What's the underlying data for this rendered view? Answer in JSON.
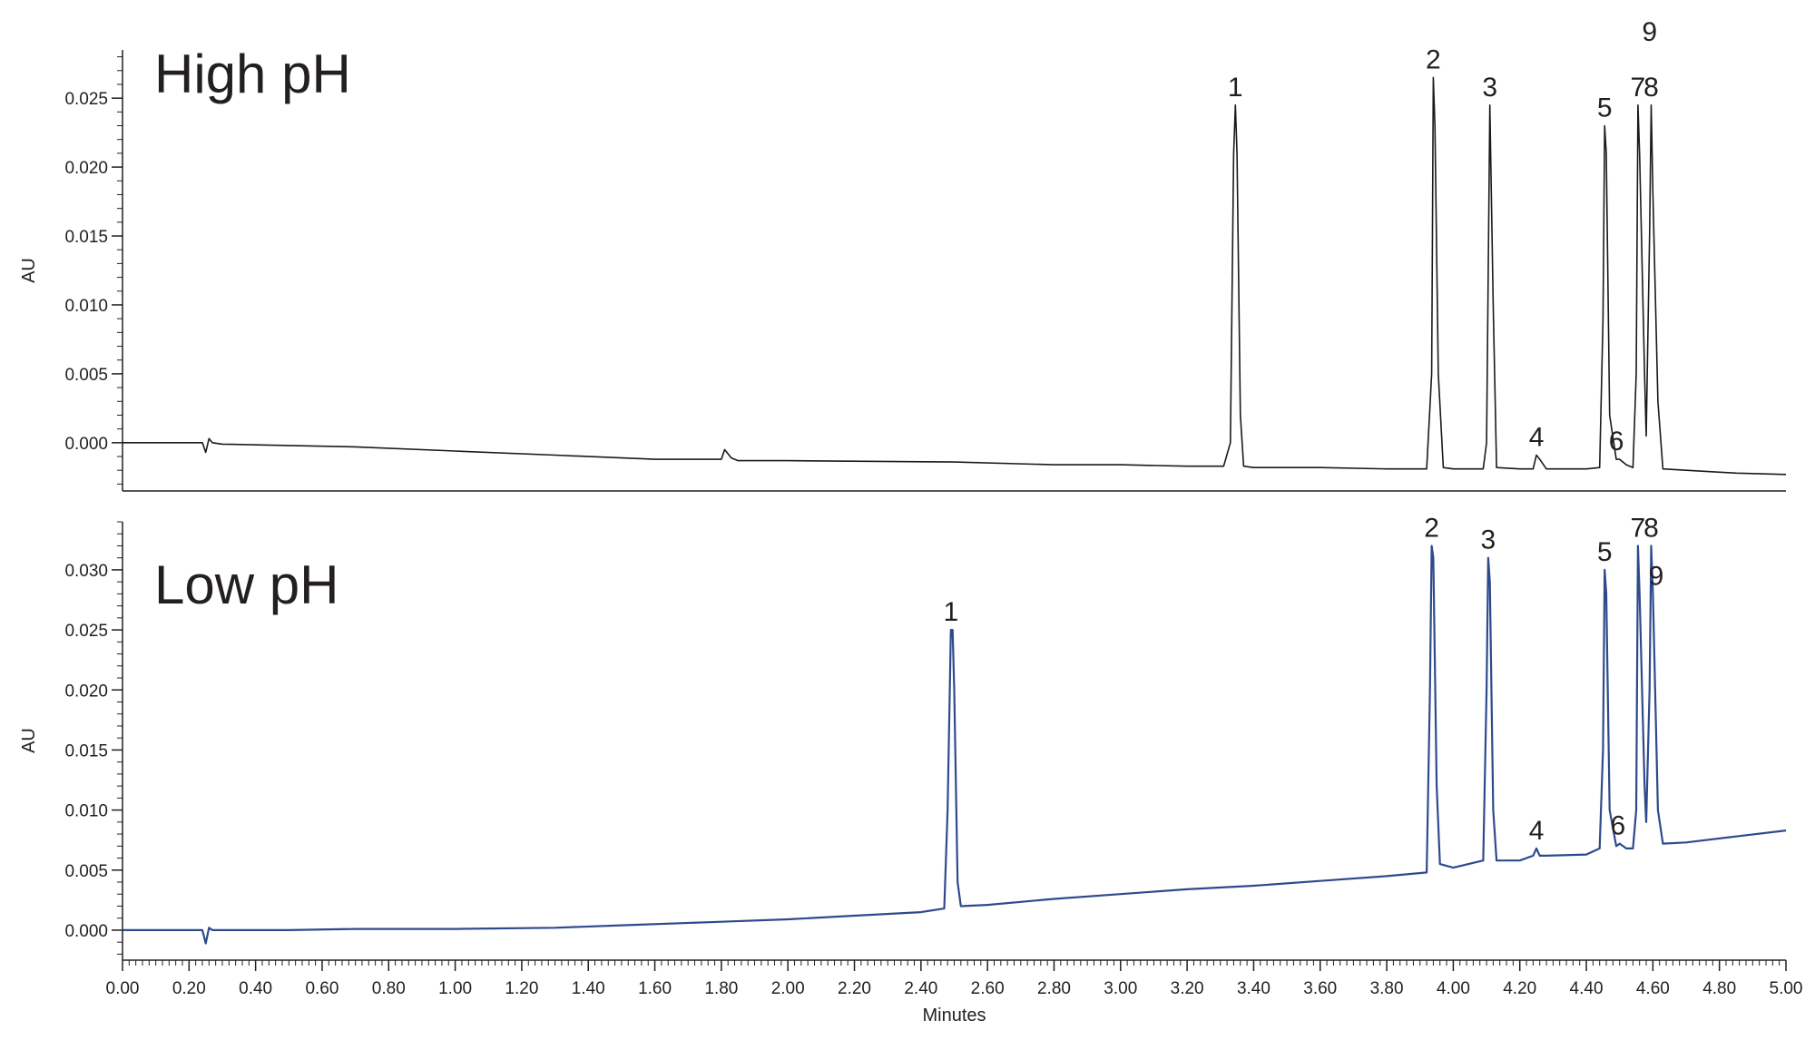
{
  "chart_data": [
    {
      "type": "line",
      "title": "High pH",
      "xlabel": "",
      "ylabel": "AU",
      "xlim": [
        0.0,
        5.0
      ],
      "ylim": [
        -0.0035,
        0.0285
      ],
      "y_ticks": [
        "0.000",
        "0.005",
        "0.010",
        "0.015",
        "0.020",
        "0.025"
      ],
      "y_tick_values": [
        0.0,
        0.005,
        0.01,
        0.015,
        0.02,
        0.025
      ],
      "grid": false,
      "line_color": "#1a1a1a",
      "series": [
        {
          "x": [
            0.0,
            0.24,
            0.25,
            0.26,
            0.27,
            0.3,
            0.5,
            0.7,
            1.0,
            1.3,
            1.6,
            1.8,
            1.81,
            1.83,
            1.85,
            2.0,
            2.5,
            2.8,
            3.0,
            3.2,
            3.31,
            3.33,
            3.34,
            3.345,
            3.35,
            3.36,
            3.37,
            3.4,
            3.6,
            3.8,
            3.92,
            3.935,
            3.94,
            3.945,
            3.955,
            3.97,
            4.0,
            4.09,
            4.1,
            4.11,
            4.12,
            4.13,
            4.2,
            4.24,
            4.25,
            4.26,
            4.28,
            4.4,
            4.44,
            4.45,
            4.455,
            4.46,
            4.47,
            4.49,
            4.5,
            4.52,
            4.54,
            4.55,
            4.555,
            4.56,
            4.575,
            4.58,
            4.59,
            4.595,
            4.6,
            4.615,
            4.63,
            4.7,
            4.85,
            5.0
          ],
          "y": [
            0.0,
            0.0,
            -0.0007,
            0.0003,
            0.0,
            -0.0001,
            -0.0002,
            -0.0003,
            -0.0006,
            -0.0009,
            -0.0012,
            -0.0012,
            -0.0005,
            -0.0011,
            -0.0013,
            -0.0013,
            -0.0014,
            -0.0016,
            -0.0016,
            -0.0017,
            -0.0017,
            0.0,
            0.021,
            0.0245,
            0.021,
            0.002,
            -0.0017,
            -0.0018,
            -0.0018,
            -0.0019,
            -0.0019,
            0.005,
            0.0265,
            0.023,
            0.005,
            -0.0018,
            -0.0019,
            -0.0019,
            0.0,
            0.0245,
            0.01,
            -0.0018,
            -0.0019,
            -0.0019,
            -0.0009,
            -0.0012,
            -0.0019,
            -0.0019,
            -0.0018,
            0.009,
            0.023,
            0.021,
            0.002,
            -0.0012,
            -0.0012,
            -0.0016,
            -0.0018,
            0.005,
            0.0245,
            0.021,
            0.005,
            0.0005,
            0.015,
            0.0245,
            0.018,
            0.003,
            -0.0019,
            -0.002,
            -0.0022,
            -0.0023
          ]
        }
      ],
      "peak_labels": [
        {
          "text": "1",
          "x": 3.345,
          "y": 0.0245
        },
        {
          "text": "2",
          "x": 3.94,
          "y": 0.0265
        },
        {
          "text": "3",
          "x": 4.11,
          "y": 0.0245
        },
        {
          "text": "4",
          "x": 4.25,
          "y": -0.0009
        },
        {
          "text": "5",
          "x": 4.455,
          "y": 0.023
        },
        {
          "text": "6",
          "x": 4.49,
          "y": -0.0012
        },
        {
          "text": "7",
          "x": 4.555,
          "y": 0.0245
        },
        {
          "text": "8",
          "x": 4.595,
          "y": 0.0245
        },
        {
          "text": "9",
          "x": 4.59,
          "y": 0.0285
        }
      ]
    },
    {
      "type": "line",
      "title": "Low pH",
      "xlabel": "Minutes",
      "ylabel": "AU",
      "xlim": [
        0.0,
        5.0
      ],
      "ylim": [
        -0.0025,
        0.034
      ],
      "x_ticks": [
        "0.00",
        "0.20",
        "0.40",
        "0.60",
        "0.80",
        "1.00",
        "1.20",
        "1.40",
        "1.60",
        "1.80",
        "2.00",
        "2.20",
        "2.40",
        "2.60",
        "2.80",
        "3.00",
        "3.20",
        "3.40",
        "3.60",
        "3.80",
        "4.00",
        "4.20",
        "4.40",
        "4.60",
        "4.80",
        "5.00"
      ],
      "x_tick_values": [
        0.0,
        0.2,
        0.4,
        0.6,
        0.8,
        1.0,
        1.2,
        1.4,
        1.6,
        1.8,
        2.0,
        2.2,
        2.4,
        2.6,
        2.8,
        3.0,
        3.2,
        3.4,
        3.6,
        3.8,
        4.0,
        4.2,
        4.4,
        4.6,
        4.8,
        5.0
      ],
      "y_ticks": [
        "0.000",
        "0.005",
        "0.010",
        "0.015",
        "0.020",
        "0.025",
        "0.030"
      ],
      "y_tick_values": [
        0.0,
        0.005,
        0.01,
        0.015,
        0.02,
        0.025,
        0.03
      ],
      "grid": false,
      "line_color": "#2e4a8c",
      "series": [
        {
          "x": [
            0.0,
            0.24,
            0.25,
            0.26,
            0.27,
            0.3,
            0.5,
            0.7,
            1.0,
            1.3,
            1.5,
            1.8,
            2.0,
            2.2,
            2.4,
            2.47,
            2.48,
            2.49,
            2.495,
            2.5,
            2.51,
            2.52,
            2.6,
            2.8,
            3.0,
            3.2,
            3.4,
            3.6,
            3.8,
            3.92,
            3.93,
            3.935,
            3.94,
            3.95,
            3.96,
            4.0,
            4.09,
            4.1,
            4.105,
            4.11,
            4.12,
            4.13,
            4.2,
            4.24,
            4.25,
            4.26,
            4.28,
            4.4,
            4.44,
            4.45,
            4.455,
            4.46,
            4.47,
            4.49,
            4.5,
            4.52,
            4.54,
            4.55,
            4.555,
            4.56,
            4.575,
            4.58,
            4.59,
            4.595,
            4.6,
            4.615,
            4.63,
            4.7,
            4.85,
            5.0
          ],
          "y": [
            0.0,
            0.0,
            -0.0011,
            0.0002,
            0.0,
            0.0,
            0.0,
            0.0001,
            0.0001,
            0.0002,
            0.0004,
            0.0007,
            0.0009,
            0.0012,
            0.0015,
            0.0018,
            0.01,
            0.025,
            0.025,
            0.02,
            0.004,
            0.002,
            0.0021,
            0.0026,
            0.003,
            0.0034,
            0.0037,
            0.0041,
            0.0045,
            0.0048,
            0.02,
            0.032,
            0.031,
            0.012,
            0.0055,
            0.0052,
            0.0058,
            0.02,
            0.031,
            0.029,
            0.01,
            0.0058,
            0.0058,
            0.0062,
            0.0068,
            0.0062,
            0.0062,
            0.0063,
            0.0068,
            0.015,
            0.03,
            0.028,
            0.01,
            0.007,
            0.0072,
            0.0068,
            0.0068,
            0.01,
            0.032,
            0.028,
            0.012,
            0.009,
            0.02,
            0.032,
            0.028,
            0.01,
            0.0072,
            0.0073,
            0.0078,
            0.0083
          ]
        }
      ],
      "peak_labels": [
        {
          "text": "1",
          "x": 2.49,
          "y": 0.025
        },
        {
          "text": "2",
          "x": 3.935,
          "y": 0.032
        },
        {
          "text": "3",
          "x": 4.105,
          "y": 0.031
        },
        {
          "text": "4",
          "x": 4.25,
          "y": 0.0068
        },
        {
          "text": "5",
          "x": 4.455,
          "y": 0.03
        },
        {
          "text": "6",
          "x": 4.495,
          "y": 0.0072
        },
        {
          "text": "7",
          "x": 4.555,
          "y": 0.032
        },
        {
          "text": "8",
          "x": 4.595,
          "y": 0.032
        },
        {
          "text": "9",
          "x": 4.61,
          "y": 0.028
        }
      ]
    }
  ]
}
